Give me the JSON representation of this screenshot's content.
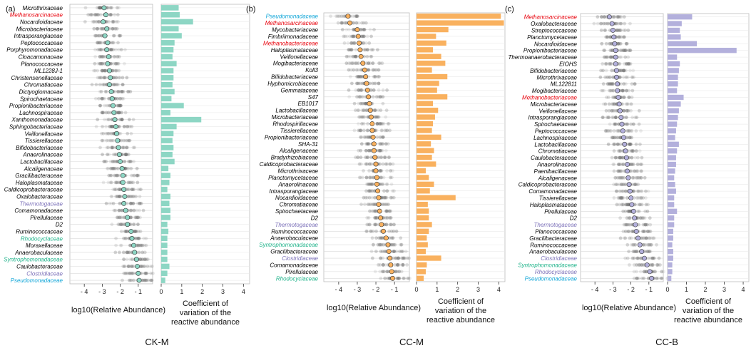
{
  "chart_data": [
    {
      "type": "scatter",
      "panel_label": "(a)",
      "title": "CK-M",
      "xlabel": "log10(Relative Abundance)",
      "cv_xlabel": [
        "Coefficient of",
        "variation of the",
        "reactive abundance"
      ],
      "xlim": [
        -4.8,
        -0.2
      ],
      "cv_xlim": [
        0,
        4.3
      ],
      "xticks": [
        -4,
        -3,
        -2,
        -1
      ],
      "xtick_labels": [
        "- 4",
        "- 3",
        "- 2",
        "- 1"
      ],
      "cv_ticks": [
        0,
        1,
        2,
        3,
        4
      ],
      "cv_tick_labels": [
        "0",
        "1",
        "2",
        "3",
        "4"
      ],
      "color": "#8dd6c4",
      "families": [
        "Microthrixaceae",
        "Methanosarcinaceae",
        "Nocardioidaceae",
        "Microbacteriaceae",
        "Intrasporangiaceae",
        "Peptococcaceae",
        "Porphyromonadaceae",
        "Cloacamonaceae",
        "Planococcaceae",
        "ML1228J-1",
        "Christensenellaceae",
        "Chromatiaceae",
        "Dictyoglomaceae",
        "Spirochaetaceae",
        "Propionibacteriaceae",
        "Lachnospiraceae",
        "Xanthomonadaceae",
        "Sphingobacteriaceae",
        "Veillonellaceae",
        "Tissierellaceae",
        "Bifidobacteriaceae",
        "Anaerolinaceae",
        "Lactobacillaceae",
        "Alcaligenaceae",
        "Gracilibacteraceae",
        "Haloplasmataceae",
        "Caldicoprobacteraceae",
        "Oxalobacteraceae",
        "Thermotogaceae",
        "Comamonadaceae",
        "Pirellulaceae",
        "D2",
        "Ruminococcaceae",
        "Rhodocyclaceae",
        "Moraxellaceae",
        "Anaerobaculaceae",
        "Syntrophomonadaceae",
        "Caulobacteraceae",
        "Clostridiaceae",
        "Pseudomonadaceae"
      ],
      "label_colors": [
        "#000000",
        "#e8000b",
        "#000000",
        "#000000",
        "#000000",
        "#000000",
        "#000000",
        "#000000",
        "#000000",
        "#000000",
        "#000000",
        "#000000",
        "#000000",
        "#000000",
        "#000000",
        "#000000",
        "#000000",
        "#000000",
        "#000000",
        "#000000",
        "#000000",
        "#000000",
        "#000000",
        "#000000",
        "#000000",
        "#000000",
        "#000000",
        "#000000",
        "#7a6fb8",
        "#000000",
        "#000000",
        "#000000",
        "#000000",
        "#1fb38a",
        "#000000",
        "#000000",
        "#1fb38a",
        "#000000",
        "#7a6fb8",
        "#11a6d8"
      ],
      "means": [
        -2.9,
        -2.8,
        -2.95,
        -2.75,
        -2.85,
        -2.7,
        -2.75,
        -2.65,
        -2.7,
        -2.6,
        -2.55,
        -2.6,
        -2.5,
        -2.45,
        -2.4,
        -2.35,
        -2.3,
        -2.25,
        -2.2,
        -2.15,
        -2.1,
        -2.05,
        -2.0,
        -1.9,
        -1.85,
        -1.85,
        -1.8,
        -1.75,
        -1.8,
        -1.7,
        -1.6,
        -1.6,
        -1.4,
        -1.35,
        -1.25,
        -1.2,
        -1.1,
        -1.05,
        -1.0,
        -0.95
      ],
      "cv": [
        0.85,
        0.9,
        1.55,
        0.85,
        1.0,
        0.65,
        0.6,
        0.55,
        0.75,
        0.6,
        0.6,
        0.55,
        0.65,
        0.5,
        1.1,
        0.45,
        1.95,
        0.75,
        0.6,
        0.55,
        0.6,
        0.55,
        0.65,
        0.35,
        0.45,
        0.4,
        0.3,
        0.45,
        0.4,
        0.45,
        0.45,
        0.3,
        0.35,
        0.3,
        0.3,
        0.3,
        0.3,
        0.4,
        0.3,
        0.2
      ]
    },
    {
      "type": "scatter",
      "panel_label": "(b)",
      "title": "CC-M",
      "xlabel": "log10(Relative Abundance)",
      "cv_xlabel": [
        "Coefficient of",
        "variation of the",
        "reactive abundance"
      ],
      "xlim": [
        -4.8,
        -0.2
      ],
      "cv_xlim": [
        0,
        4.3
      ],
      "xticks": [
        -4,
        -3,
        -2,
        -1
      ],
      "xtick_labels": [
        "- 4",
        "- 3",
        "- 2",
        "- 1"
      ],
      "cv_ticks": [
        0,
        1,
        2,
        3,
        4
      ],
      "cv_tick_labels": [
        "0",
        "1",
        "2",
        "3",
        "4"
      ],
      "color": "#f9b15f",
      "families": [
        "Pseudomonadaceae",
        "Methanosarcinaceae",
        "Mycobacteriaceae",
        "Fimbriimonadaceae",
        "Methanobacteriaceae",
        "Haloplasmataceae",
        "Veillonellaceae",
        "Mogibacteriaceae",
        "Koll3",
        "Bifidobacteriaceae",
        "Hyphomicrobiaceae",
        "Gemmataceae",
        "S47",
        "EB1017",
        "Lactobacillaceae",
        "Microbacteriaceae",
        "Rhodospirillaceae",
        "Tissierellaceae",
        "Propionibacteriaceae",
        "SHA-31",
        "Alcaligenaceae",
        "Bradyrhizobiaceae",
        "Caldicoprobacteraceae",
        "Microthrixaceae",
        "Planctomycetaceae",
        "Anaerolinaceae",
        "Intrasporangiaceae",
        "Nocardioidaceae",
        "Chromatiaceae",
        "Spirochaetaceae",
        "D2",
        "Thermotogaceae",
        "Ruminococcaceae",
        "Anaerobaculaceae",
        "Syntrophomonadaceae",
        "Gracilibacteraceae",
        "Clostridiaceae",
        "Comamonadaceae",
        "Pirellulaceae",
        "Rhodocyclaceae"
      ],
      "label_colors": [
        "#11a6d8",
        "#e8000b",
        "#000000",
        "#000000",
        "#e8000b",
        "#000000",
        "#000000",
        "#000000",
        "#000000",
        "#000000",
        "#000000",
        "#000000",
        "#000000",
        "#000000",
        "#000000",
        "#000000",
        "#000000",
        "#000000",
        "#000000",
        "#000000",
        "#000000",
        "#000000",
        "#000000",
        "#000000",
        "#000000",
        "#000000",
        "#000000",
        "#000000",
        "#000000",
        "#000000",
        "#000000",
        "#7a6fb8",
        "#000000",
        "#000000",
        "#1fb38a",
        "#000000",
        "#7a6fb8",
        "#000000",
        "#000000",
        "#1fb38a"
      ],
      "means": [
        -3.5,
        -3.4,
        -3.0,
        -2.95,
        -2.9,
        -2.85,
        -2.8,
        -2.7,
        -2.6,
        -2.55,
        -2.5,
        -2.45,
        -2.4,
        -2.35,
        -2.3,
        -2.25,
        -2.2,
        -2.2,
        -2.15,
        -2.1,
        -2.1,
        -2.05,
        -2.0,
        -2.0,
        -1.95,
        -1.95,
        -1.9,
        -1.85,
        -1.85,
        -1.8,
        -1.75,
        -1.7,
        -1.6,
        -1.45,
        -1.35,
        -1.3,
        -1.25,
        -1.2,
        -1.15,
        -1.1
      ],
      "cv": [
        4.1,
        4.25,
        1.55,
        0.95,
        1.45,
        0.8,
        1.2,
        1.4,
        0.75,
        1.5,
        1.1,
        1.0,
        1.5,
        0.8,
        1.05,
        0.9,
        0.8,
        0.75,
        1.2,
        0.7,
        0.85,
        0.75,
        0.95,
        0.45,
        0.6,
        0.85,
        0.65,
        1.9,
        0.55,
        0.6,
        0.6,
        0.75,
        0.6,
        0.5,
        0.55,
        0.45,
        1.2,
        0.5,
        0.45,
        0.35
      ]
    },
    {
      "type": "scatter",
      "panel_label": "(c)",
      "title": "CC-B",
      "xlabel": "log10(Relative Abundance)",
      "cv_xlabel": [
        "Coefficient of",
        "variation of the",
        "reactive abundance"
      ],
      "xlim": [
        -4.8,
        -0.2
      ],
      "cv_xlim": [
        0,
        4.3
      ],
      "xticks": [
        -4,
        -3,
        -2,
        -1
      ],
      "xtick_labels": [
        "- 4",
        "- 3",
        "- 2",
        "- 1"
      ],
      "cv_ticks": [
        0,
        1,
        2,
        3,
        4
      ],
      "cv_tick_labels": [
        "0",
        "1",
        "2",
        "3",
        "4"
      ],
      "color": "#b3b0dc",
      "families": [
        "Methanosarcinaceae",
        "Oxalobacteraceae",
        "Streptococcaceae",
        "Planctomycetaceae",
        "Nocardioidaceae",
        "Propionibacteriaceae",
        "Thermoanaerobacteraceae",
        "EIOHS",
        "Bifidobacteriaceae",
        "Microthrixaceae",
        "ML122811",
        "Mogibacteriaceae",
        "Methanobacteriaceae",
        "Microbacteriaceae",
        "Veillonellaceae",
        "Intrasporangiaceae",
        "Spirochaetaceae",
        "Peptococcaceae",
        "Lachnospiraceae",
        "Lactobacillaceae",
        "Chromatiaceae",
        "Caulobacteraceae",
        "Anaerolinaceae",
        "Paenibacillaceae",
        "Alcaligenaceae",
        "Caldicoprobacteraceae",
        "Comamonadaceae",
        "Tissierellaceae",
        "Haloplasmataceae",
        "Pirellulaceae",
        "D2",
        "Thermotogaceae",
        "Planococcaceae",
        "Gracilibacteraceae",
        "Ruminococcaceae",
        "Anaerobaculaceae",
        "Clostridiaceae",
        "Syntrophomonadaceae",
        "Rhodocyclaceae",
        "Pseudomonadaceae"
      ],
      "label_colors": [
        "#e8000b",
        "#000000",
        "#000000",
        "#000000",
        "#000000",
        "#000000",
        "#000000",
        "#000000",
        "#000000",
        "#000000",
        "#000000",
        "#000000",
        "#e8000b",
        "#000000",
        "#000000",
        "#000000",
        "#000000",
        "#000000",
        "#000000",
        "#000000",
        "#000000",
        "#000000",
        "#000000",
        "#000000",
        "#000000",
        "#000000",
        "#000000",
        "#000000",
        "#000000",
        "#000000",
        "#000000",
        "#7a6fb8",
        "#000000",
        "#000000",
        "#000000",
        "#000000",
        "#7a6fb8",
        "#1fb38a",
        "#7a6fb8",
        "#11a6d8"
      ],
      "means": [
        -3.2,
        -3.05,
        -3.0,
        -2.95,
        -2.9,
        -2.85,
        -2.85,
        -2.85,
        -2.8,
        -2.8,
        -2.75,
        -2.75,
        -2.7,
        -2.65,
        -2.6,
        -2.55,
        -2.5,
        -2.45,
        -2.4,
        -2.35,
        -2.3,
        -2.25,
        -2.2,
        -2.2,
        -2.15,
        -2.1,
        -2.05,
        -2.0,
        -1.95,
        -1.85,
        -1.8,
        -1.75,
        -1.7,
        -1.6,
        -1.5,
        -1.4,
        -1.25,
        -1.1,
        -0.95,
        -0.85
      ],
      "cv": [
        1.3,
        0.75,
        0.65,
        0.7,
        1.55,
        3.65,
        0.5,
        0.65,
        0.6,
        0.55,
        0.55,
        0.5,
        0.85,
        0.7,
        0.6,
        0.55,
        0.5,
        0.45,
        0.4,
        0.6,
        0.5,
        0.45,
        0.45,
        0.4,
        0.35,
        0.4,
        0.45,
        0.35,
        0.35,
        0.5,
        0.35,
        0.35,
        0.3,
        0.3,
        0.25,
        0.3,
        0.3,
        0.25,
        0.25,
        0.2
      ]
    }
  ]
}
